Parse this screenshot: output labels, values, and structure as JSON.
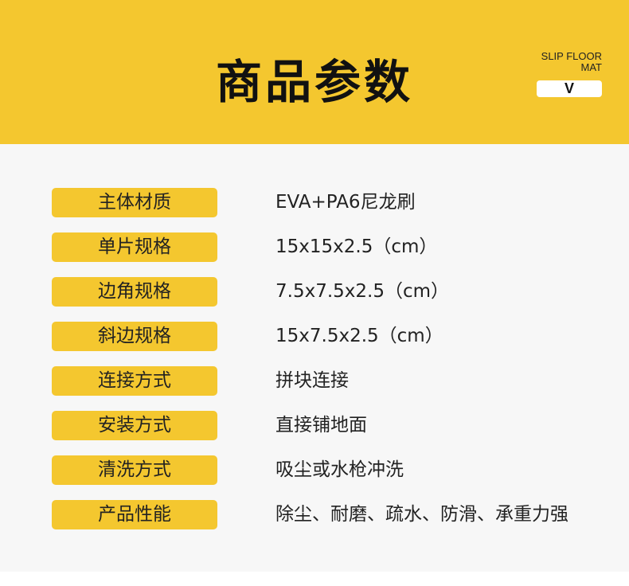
{
  "header": {
    "title": "商品参数",
    "brand_line1": "SLIP FLOOR",
    "brand_line2": "MAT",
    "badge": "V",
    "color": "#f4c72f"
  },
  "params": [
    {
      "label": "主体材质",
      "value": "EVA+PA6尼龙刷"
    },
    {
      "label": "单片规格",
      "value": "15x15x2.5（cm）"
    },
    {
      "label": "边角规格",
      "value": "7.5x7.5x2.5（cm）"
    },
    {
      "label": "斜边规格",
      "value": "15x7.5x2.5（cm）"
    },
    {
      "label": "连接方式",
      "value": "拼块连接"
    },
    {
      "label": "安装方式",
      "value": "直接铺地面"
    },
    {
      "label": "清洗方式",
      "value": "吸尘或水枪冲洗"
    },
    {
      "label": "产品性能",
      "value": "除尘、耐磨、疏水、防滑、承重力强"
    }
  ]
}
